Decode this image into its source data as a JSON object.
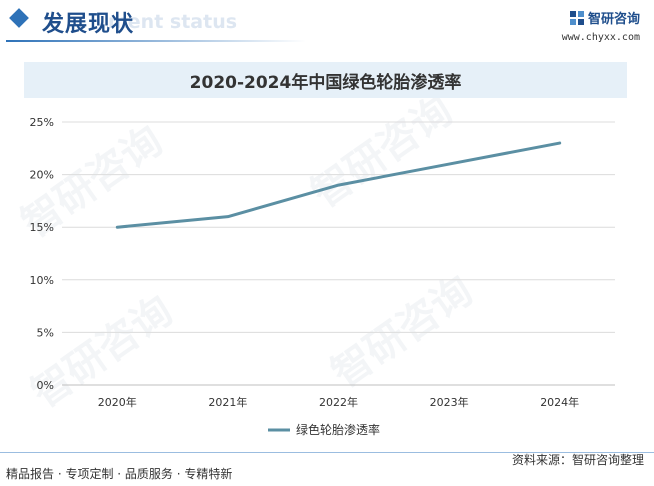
{
  "header": {
    "section_title": "发展现状",
    "section_subtitle": "ment status",
    "brand_name": "智研咨询",
    "brand_url": "www.chyxx.com"
  },
  "watermark_text": "智研咨询",
  "chart_data": {
    "type": "line",
    "title": "2020-2024年中国绿色轮胎渗透率",
    "categories": [
      "2020年",
      "2021年",
      "2022年",
      "2023年",
      "2024年"
    ],
    "series": [
      {
        "name": "绿色轮胎渗透率",
        "values": [
          15,
          16,
          19,
          21,
          23
        ],
        "color": "#5b8fa3"
      }
    ],
    "yticks": [
      "0%",
      "5%",
      "10%",
      "15%",
      "20%",
      "25%"
    ],
    "ylim": [
      0,
      25
    ],
    "grid": true,
    "legend": "bottom"
  },
  "footer": {
    "left": "精品报告 · 专项定制 · 品质服务 · 专精特新",
    "right": "资料来源：智研咨询整理"
  }
}
